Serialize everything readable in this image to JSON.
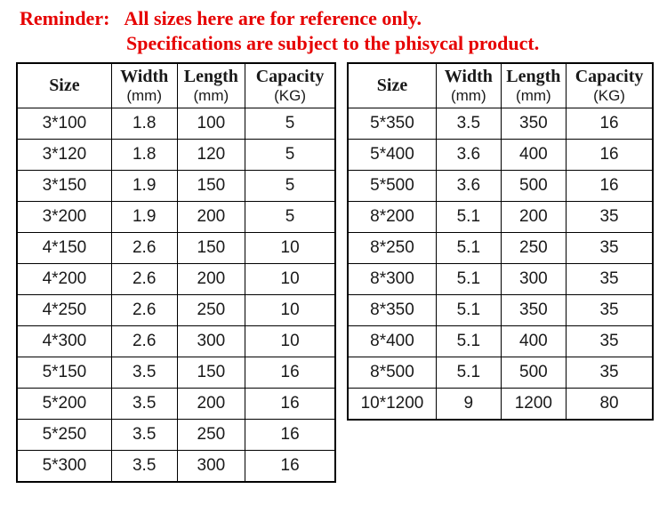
{
  "reminder": {
    "label": "Reminder:",
    "line1": "All sizes here are for reference only.",
    "line2": "Specifications are subject to the phisycal product.",
    "color": "#e60000"
  },
  "tables": [
    {
      "name": "left-size-table",
      "headers": [
        {
          "title": "Size",
          "unit": ""
        },
        {
          "title": "Width",
          "unit": "(mm)"
        },
        {
          "title": "Length",
          "unit": "(mm)"
        },
        {
          "title": "Capacity",
          "unit": "(KG)"
        }
      ],
      "rows": [
        [
          "3*100",
          "1.8",
          "100",
          "5"
        ],
        [
          "3*120",
          "1.8",
          "120",
          "5"
        ],
        [
          "3*150",
          "1.9",
          "150",
          "5"
        ],
        [
          "3*200",
          "1.9",
          "200",
          "5"
        ],
        [
          "4*150",
          "2.6",
          "150",
          "10"
        ],
        [
          "4*200",
          "2.6",
          "200",
          "10"
        ],
        [
          "4*250",
          "2.6",
          "250",
          "10"
        ],
        [
          "4*300",
          "2.6",
          "300",
          "10"
        ],
        [
          "5*150",
          "3.5",
          "150",
          "16"
        ],
        [
          "5*200",
          "3.5",
          "200",
          "16"
        ],
        [
          "5*250",
          "3.5",
          "250",
          "16"
        ],
        [
          "5*300",
          "3.5",
          "300",
          "16"
        ]
      ]
    },
    {
      "name": "right-size-table",
      "headers": [
        {
          "title": "Size",
          "unit": ""
        },
        {
          "title": "Width",
          "unit": "(mm)"
        },
        {
          "title": "Length",
          "unit": "(mm)"
        },
        {
          "title": "Capacity",
          "unit": "(KG)"
        }
      ],
      "rows": [
        [
          "5*350",
          "3.5",
          "350",
          "16"
        ],
        [
          "5*400",
          "3.6",
          "400",
          "16"
        ],
        [
          "5*500",
          "3.6",
          "500",
          "16"
        ],
        [
          "8*200",
          "5.1",
          "200",
          "35"
        ],
        [
          "8*250",
          "5.1",
          "250",
          "35"
        ],
        [
          "8*300",
          "5.1",
          "300",
          "35"
        ],
        [
          "8*350",
          "5.1",
          "350",
          "35"
        ],
        [
          "8*400",
          "5.1",
          "400",
          "35"
        ],
        [
          "8*500",
          "5.1",
          "500",
          "35"
        ],
        [
          "10*1200",
          "9",
          "1200",
          "80"
        ]
      ]
    }
  ]
}
